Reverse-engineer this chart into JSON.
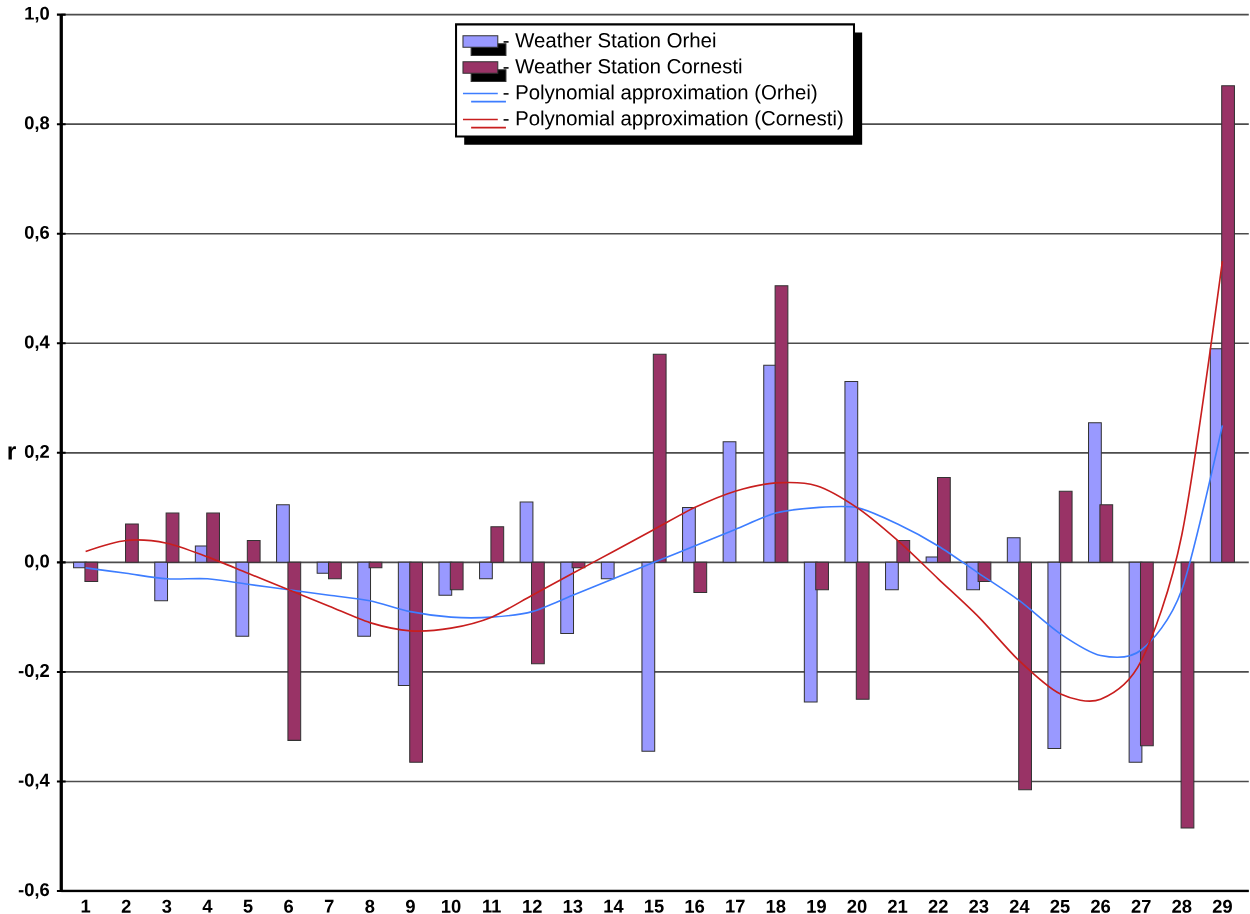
{
  "chart_data": {
    "type": "bar",
    "ylabel": "r",
    "categories": [
      "1",
      "2",
      "3",
      "4",
      "5",
      "6",
      "7",
      "8",
      "9",
      "10",
      "11",
      "12",
      "13",
      "14",
      "15",
      "16",
      "17",
      "18",
      "19",
      "20",
      "21",
      "22",
      "23",
      "24",
      "25",
      "26",
      "27",
      "28",
      "29"
    ],
    "series": [
      {
        "name": "- Weather Station Orhei",
        "color": "#9999ff",
        "values": [
          -0.01,
          null,
          -0.07,
          0.03,
          -0.135,
          0.105,
          -0.02,
          -0.135,
          -0.225,
          -0.06,
          -0.03,
          0.11,
          -0.13,
          -0.03,
          -0.345,
          0.1,
          0.22,
          0.36,
          -0.255,
          0.33,
          -0.05,
          0.01,
          -0.05,
          0.045,
          -0.34,
          0.255,
          -0.365,
          null,
          0.39
        ]
      },
      {
        "name": "- Weather Station Cornesti",
        "color": "#993366",
        "values": [
          -0.035,
          0.07,
          0.09,
          0.09,
          0.04,
          -0.325,
          -0.03,
          -0.01,
          -0.365,
          -0.05,
          0.065,
          -0.185,
          -0.01,
          null,
          0.38,
          -0.055,
          null,
          0.505,
          -0.05,
          -0.25,
          0.04,
          0.155,
          -0.035,
          -0.415,
          0.13,
          0.105,
          -0.335,
          -0.485,
          0.87
        ]
      },
      {
        "name": "- Polynomial approximation (Orhei)",
        "type": "line",
        "color": "#3d7dff",
        "values": [
          -0.01,
          -0.02,
          -0.03,
          -0.03,
          -0.04,
          -0.05,
          -0.06,
          -0.07,
          -0.09,
          -0.1,
          -0.1,
          -0.09,
          -0.06,
          -0.03,
          0.0,
          0.03,
          0.06,
          0.09,
          0.1,
          0.1,
          0.07,
          0.03,
          -0.02,
          -0.07,
          -0.13,
          -0.17,
          -0.16,
          -0.05,
          0.25
        ]
      },
      {
        "name": "- Polynomial approximation (Cornesti)",
        "type": "line",
        "color": "#c81e1e",
        "values": [
          0.02,
          0.04,
          0.035,
          0.01,
          -0.02,
          -0.05,
          -0.08,
          -0.11,
          -0.125,
          -0.12,
          -0.1,
          -0.06,
          -0.02,
          0.02,
          0.06,
          0.1,
          0.13,
          0.145,
          0.14,
          0.1,
          0.04,
          -0.03,
          -0.1,
          -0.18,
          -0.24,
          -0.25,
          -0.18,
          0.05,
          0.55
        ]
      }
    ],
    "ylim": [
      -0.6,
      1.0
    ],
    "yticks": [
      {
        "value": -0.6,
        "label": "-0,6"
      },
      {
        "value": -0.4,
        "label": "-0,4"
      },
      {
        "value": -0.2,
        "label": "-0,2"
      },
      {
        "value": 0.0,
        "label": "0,0"
      },
      {
        "value": 0.2,
        "label": "0,2"
      },
      {
        "value": 0.4,
        "label": "0,4"
      },
      {
        "value": 0.6,
        "label": "0,6"
      },
      {
        "value": 0.8,
        "label": "0,8"
      },
      {
        "value": 1.0,
        "label": "1,0"
      }
    ],
    "grid": "y",
    "legend": "top",
    "marker": "none",
    "line_style": "solid"
  }
}
